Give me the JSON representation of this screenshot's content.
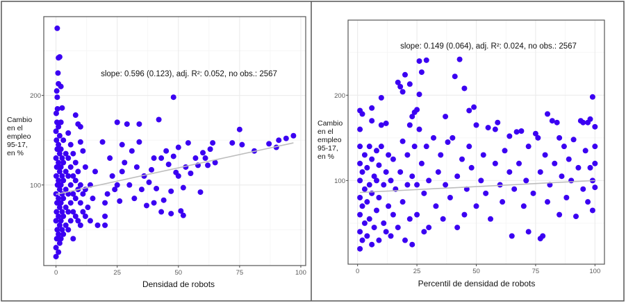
{
  "colors": {
    "points": "#3b00f2",
    "fit_line": "#bdbdbd",
    "grid": "#ebebeb",
    "panel_border": "#555555"
  },
  "chart_data": [
    {
      "type": "scatter",
      "xlabel": "Densidad de robots",
      "ylabel_lines": [
        "Cambio",
        "en el",
        "empleo",
        "95-17,",
        "en %"
      ],
      "annotation": "slope: 0.596 (0.123),  adj. R²: 0.052,  no obs.: 2567",
      "xlim": [
        -5,
        102
      ],
      "ylim": [
        10,
        288
      ],
      "xticks": [
        "0",
        "25",
        "50",
        "75",
        "100"
      ],
      "xtick_values": [
        0,
        25,
        50,
        75,
        100
      ],
      "yticks": [
        "100",
        "200"
      ],
      "ytick_values": [
        100,
        200
      ],
      "grid": true,
      "fit_line": {
        "x": [
          0,
          97
        ],
        "y": [
          89.5,
          147
        ]
      },
      "points": [
        [
          0,
          20
        ],
        [
          0,
          30
        ],
        [
          0.3,
          40
        ],
        [
          0.5,
          50
        ],
        [
          0,
          60
        ],
        [
          0.2,
          70
        ],
        [
          0.4,
          80
        ],
        [
          0,
          90
        ],
        [
          0.6,
          100
        ],
        [
          0.1,
          110
        ],
        [
          0.3,
          120
        ],
        [
          0,
          130
        ],
        [
          0.5,
          140
        ],
        [
          0.2,
          150
        ],
        [
          0,
          160
        ],
        [
          0.4,
          170
        ],
        [
          0.1,
          180
        ],
        [
          0.6,
          185
        ],
        [
          1,
          25
        ],
        [
          1,
          45
        ],
        [
          1,
          65
        ],
        [
          1,
          85
        ],
        [
          1,
          105
        ],
        [
          1,
          125
        ],
        [
          1,
          145
        ],
        [
          1,
          165
        ],
        [
          1.5,
          35
        ],
        [
          1.5,
          55
        ],
        [
          1.5,
          75
        ],
        [
          1.5,
          95
        ],
        [
          1.5,
          115
        ],
        [
          1.5,
          135
        ],
        [
          1.5,
          155
        ],
        [
          2,
          40
        ],
        [
          2,
          60
        ],
        [
          2,
          80
        ],
        [
          2,
          100
        ],
        [
          2,
          120
        ],
        [
          2,
          140
        ],
        [
          2,
          170
        ],
        [
          2.5,
          50
        ],
        [
          2.5,
          70
        ],
        [
          2.5,
          90
        ],
        [
          2.5,
          110
        ],
        [
          2.5,
          130
        ],
        [
          3,
          45
        ],
        [
          3,
          65
        ],
        [
          3,
          85
        ],
        [
          3,
          105
        ],
        [
          3,
          125
        ],
        [
          3,
          150
        ],
        [
          4,
          55
        ],
        [
          4,
          75
        ],
        [
          4,
          95
        ],
        [
          4,
          115
        ],
        [
          4,
          135
        ],
        [
          5,
          50
        ],
        [
          5,
          70
        ],
        [
          5,
          90
        ],
        [
          5,
          110
        ],
        [
          5,
          130
        ],
        [
          5,
          158
        ],
        [
          6,
          60
        ],
        [
          6,
          80
        ],
        [
          6,
          100
        ],
        [
          6,
          120
        ],
        [
          6,
          145
        ],
        [
          7,
          40
        ],
        [
          7,
          70
        ],
        [
          7,
          90
        ],
        [
          7,
          110
        ],
        [
          7,
          135
        ],
        [
          8,
          65
        ],
        [
          8,
          85
        ],
        [
          8,
          105
        ],
        [
          8,
          125
        ],
        [
          8,
          178
        ],
        [
          9,
          60
        ],
        [
          9,
          95
        ],
        [
          9,
          115
        ],
        [
          9,
          168
        ],
        [
          10,
          55
        ],
        [
          10,
          80
        ],
        [
          10,
          100
        ],
        [
          10,
          148
        ],
        [
          10,
          165
        ],
        [
          11,
          70
        ],
        [
          11,
          90
        ],
        [
          11,
          138
        ],
        [
          12,
          65
        ],
        [
          12,
          95
        ],
        [
          12,
          120
        ],
        [
          13,
          75
        ],
        [
          14,
          60
        ],
        [
          14,
          100
        ],
        [
          15,
          85
        ],
        [
          16,
          115
        ],
        [
          0.5,
          275
        ],
        [
          1,
          242
        ],
        [
          1.5,
          243
        ],
        [
          0.8,
          225
        ],
        [
          1,
          213
        ],
        [
          0.3,
          205
        ],
        [
          2,
          210
        ],
        [
          0.5,
          198
        ],
        [
          2.5,
          186
        ],
        [
          17,
          55
        ],
        [
          19,
          148
        ],
        [
          20,
          55
        ],
        [
          20,
          65
        ],
        [
          20,
          80
        ],
        [
          21,
          90
        ],
        [
          22,
          130
        ],
        [
          23,
          110
        ],
        [
          24,
          95
        ],
        [
          25,
          170
        ],
        [
          25,
          100
        ],
        [
          26,
          82
        ],
        [
          27,
          115
        ],
        [
          27,
          145
        ],
        [
          28,
          125
        ],
        [
          29,
          168
        ],
        [
          30,
          100
        ],
        [
          31,
          138
        ],
        [
          32,
          85
        ],
        [
          33,
          120
        ],
        [
          34,
          168
        ],
        [
          34,
          148
        ],
        [
          35,
          95
        ],
        [
          36,
          110
        ],
        [
          37,
          77
        ],
        [
          38,
          103
        ],
        [
          39,
          117
        ],
        [
          40,
          80
        ],
        [
          40,
          130
        ],
        [
          41,
          96
        ],
        [
          42,
          173
        ],
        [
          43,
          70
        ],
        [
          43,
          130
        ],
        [
          44,
          83
        ],
        [
          45,
          138
        ],
        [
          46,
          123
        ],
        [
          47,
          68
        ],
        [
          47,
          93
        ],
        [
          48,
          198
        ],
        [
          48,
          132
        ],
        [
          49,
          114
        ],
        [
          50,
          142
        ],
        [
          50,
          110
        ],
        [
          51,
          71
        ],
        [
          52,
          66
        ],
        [
          52,
          97
        ],
        [
          53,
          120
        ],
        [
          54,
          147
        ],
        [
          55,
          113
        ],
        [
          57,
          130
        ],
        [
          58,
          122
        ],
        [
          59,
          92
        ],
        [
          60,
          136
        ],
        [
          61,
          130
        ],
        [
          62,
          122
        ],
        [
          63,
          140
        ],
        [
          64,
          147
        ],
        [
          65,
          125
        ],
        [
          72,
          147
        ],
        [
          75,
          162
        ],
        [
          76,
          145
        ],
        [
          81,
          138
        ],
        [
          87,
          146
        ],
        [
          90,
          142
        ],
        [
          91,
          150
        ],
        [
          94,
          152
        ],
        [
          97,
          155
        ]
      ]
    },
    {
      "type": "scatter",
      "xlabel": "Percentil de densidad de robots",
      "ylabel_lines": [
        "Cambio",
        "en el",
        "empleo",
        "95-17,",
        "en %"
      ],
      "annotation": "slope: 0.149 (0.064),  adj. R²: 0.024,  no obs.: 2567",
      "xlim": [
        -4,
        104
      ],
      "ylim": [
        2,
        288
      ],
      "xticks": [
        "0",
        "25",
        "50",
        "75",
        "100"
      ],
      "xtick_values": [
        0,
        25,
        50,
        75,
        100
      ],
      "yticks": [
        "100",
        "200"
      ],
      "ytick_values": [
        100,
        200
      ],
      "grid": true,
      "fit_line": {
        "x": [
          1,
          100
        ],
        "y": [
          86,
          100
        ]
      },
      "points": [
        [
          1,
          20
        ],
        [
          1,
          40
        ],
        [
          1,
          60
        ],
        [
          1,
          80
        ],
        [
          1,
          100
        ],
        [
          1,
          120
        ],
        [
          1,
          140
        ],
        [
          1,
          160
        ],
        [
          1,
          182
        ],
        [
          2,
          30
        ],
        [
          2,
          70
        ],
        [
          2,
          110
        ],
        [
          2,
          178
        ],
        [
          3,
          50
        ],
        [
          3,
          90
        ],
        [
          3,
          130
        ],
        [
          4,
          35
        ],
        [
          4,
          75
        ],
        [
          4,
          115
        ],
        [
          5,
          55
        ],
        [
          5,
          95
        ],
        [
          5,
          140
        ],
        [
          6,
          25
        ],
        [
          6,
          85
        ],
        [
          6,
          125
        ],
        [
          6,
          185
        ],
        [
          6,
          170
        ],
        [
          7,
          45
        ],
        [
          7,
          105
        ],
        [
          8,
          65
        ],
        [
          8,
          100
        ],
        [
          8,
          135
        ],
        [
          9,
          30
        ],
        [
          9,
          80
        ],
        [
          9,
          118
        ],
        [
          10,
          197
        ],
        [
          10,
          165
        ],
        [
          10,
          140
        ],
        [
          11,
          50
        ],
        [
          11,
          95
        ],
        [
          12,
          40
        ],
        [
          12,
          110
        ],
        [
          12,
          167
        ],
        [
          13,
          70
        ],
        [
          13,
          130
        ],
        [
          14,
          35
        ],
        [
          14,
          100
        ],
        [
          15,
          60
        ],
        [
          15,
          125
        ],
        [
          16,
          90
        ],
        [
          17,
          215
        ],
        [
          17,
          45
        ],
        [
          18,
          210
        ],
        [
          18,
          110
        ],
        [
          19,
          204
        ],
        [
          19,
          75
        ],
        [
          19,
          146
        ],
        [
          20,
          224
        ],
        [
          20,
          30
        ],
        [
          21,
          95
        ],
        [
          21,
          130
        ],
        [
          22,
          213
        ],
        [
          22,
          55
        ],
        [
          22,
          165
        ],
        [
          23,
          25
        ],
        [
          23,
          175
        ],
        [
          23,
          105
        ],
        [
          24,
          180
        ],
        [
          24,
          140
        ],
        [
          25,
          183
        ],
        [
          25,
          60
        ],
        [
          25,
          95
        ],
        [
          26,
          240
        ],
        [
          26,
          201
        ],
        [
          26,
          160
        ],
        [
          27,
          227
        ],
        [
          27,
          120
        ],
        [
          28,
          85
        ],
        [
          28,
          40
        ],
        [
          29,
          241
        ],
        [
          29,
          140
        ],
        [
          30,
          100
        ],
        [
          30,
          45
        ],
        [
          32,
          150
        ],
        [
          33,
          70
        ],
        [
          34,
          110
        ],
        [
          35,
          130
        ],
        [
          36,
          55
        ],
        [
          37,
          175
        ],
        [
          37,
          95
        ],
        [
          38,
          145
        ],
        [
          39,
          80
        ],
        [
          40,
          150
        ],
        [
          41,
          222
        ],
        [
          42,
          105
        ],
        [
          42,
          45
        ],
        [
          43,
          242
        ],
        [
          44,
          125
        ],
        [
          45,
          208
        ],
        [
          45,
          60
        ],
        [
          46,
          90
        ],
        [
          47,
          182
        ],
        [
          47,
          140
        ],
        [
          48,
          115
        ],
        [
          49,
          186
        ],
        [
          50,
          165
        ],
        [
          50,
          70
        ],
        [
          52,
          100
        ],
        [
          53,
          130
        ],
        [
          54,
          85
        ],
        [
          55,
          162
        ],
        [
          56,
          55
        ],
        [
          58,
          160
        ],
        [
          58,
          120
        ],
        [
          59,
          168
        ],
        [
          60,
          95
        ],
        [
          61,
          75
        ],
        [
          62,
          135
        ],
        [
          64,
          152
        ],
        [
          64,
          110
        ],
        [
          65,
          35
        ],
        [
          66,
          90
        ],
        [
          67,
          157
        ],
        [
          68,
          120
        ],
        [
          69,
          158
        ],
        [
          70,
          70
        ],
        [
          71,
          100
        ],
        [
          72,
          140
        ],
        [
          72,
          40
        ],
        [
          74,
          85
        ],
        [
          75,
          155
        ],
        [
          76,
          150
        ],
        [
          77,
          110
        ],
        [
          77,
          32
        ],
        [
          78,
          35
        ],
        [
          79,
          130
        ],
        [
          80,
          178
        ],
        [
          80,
          75
        ],
        [
          81,
          95
        ],
        [
          82,
          170
        ],
        [
          83,
          120
        ],
        [
          84,
          168
        ],
        [
          85,
          150
        ],
        [
          85,
          60
        ],
        [
          86,
          105
        ],
        [
          87,
          140
        ],
        [
          88,
          80
        ],
        [
          89,
          125
        ],
        [
          90,
          100
        ],
        [
          91,
          148
        ],
        [
          92,
          58
        ],
        [
          93,
          115
        ],
        [
          94,
          170
        ],
        [
          95,
          168
        ],
        [
          95,
          90
        ],
        [
          96,
          135
        ],
        [
          97,
          75
        ],
        [
          97,
          168
        ],
        [
          98,
          172
        ],
        [
          98,
          115
        ],
        [
          99,
          198
        ],
        [
          99,
          65
        ],
        [
          99,
          100
        ],
        [
          100,
          163
        ],
        [
          100,
          92
        ],
        [
          100,
          140
        ],
        [
          100,
          120
        ]
      ]
    }
  ]
}
